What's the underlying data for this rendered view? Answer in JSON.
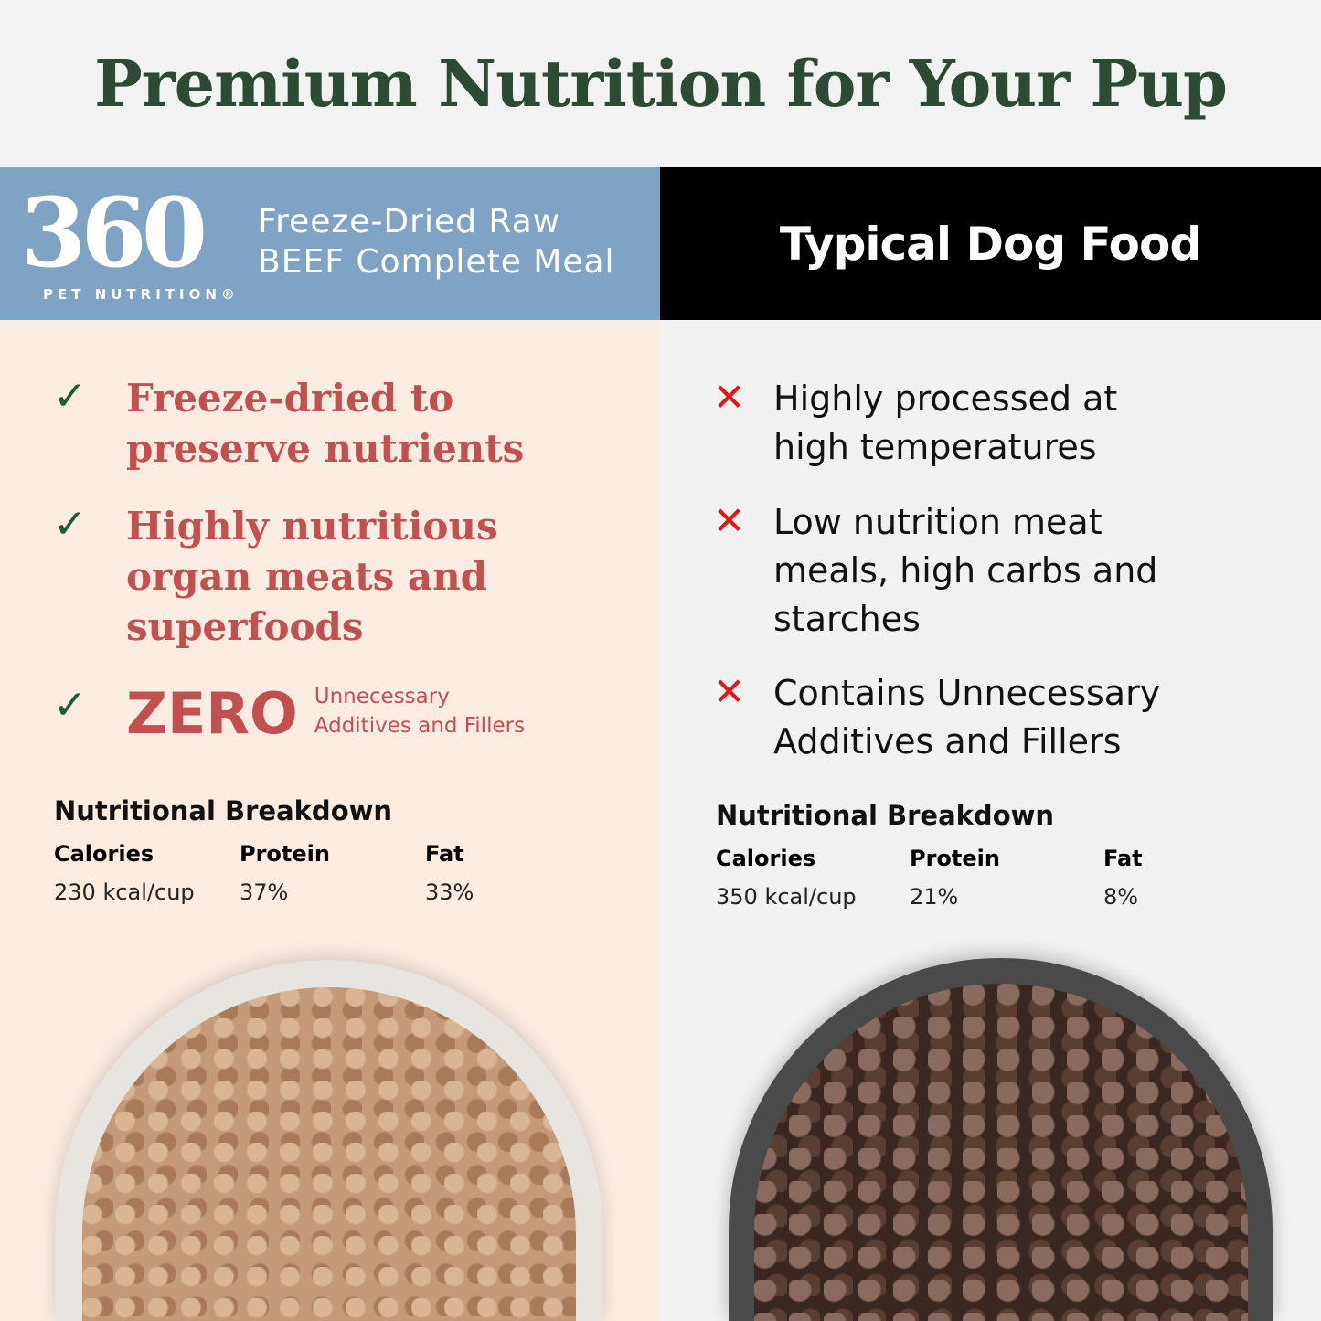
{
  "title": "Premium Nutrition for Your Pup",
  "left_header": {
    "logo": "360",
    "logo_sub": "PET NUTRITION®",
    "product_line1": "Freeze-Dried Raw",
    "product_line2": "BEEF Complete Meal",
    "color": "#7ea3c4"
  },
  "right_header": {
    "title": "Typical Dog Food"
  },
  "left_points": [
    {
      "icon": "check-icon",
      "lines": [
        "Freeze-dried to",
        "preserve nutrients"
      ]
    },
    {
      "icon": "check-icon",
      "lines": [
        "Highly nutritious",
        "organ meats and",
        "superfoods"
      ]
    },
    {
      "icon": "check-icon",
      "zero": "ZERO",
      "lines": [
        "Unnecessary",
        "Additives and Fillers"
      ]
    }
  ],
  "right_points": [
    {
      "icon": "x-icon",
      "lines": [
        "Highly processed at",
        "high temperatures"
      ]
    },
    {
      "icon": "x-icon",
      "lines": [
        "Low nutrition meat",
        "meals, high carbs and",
        "starches"
      ]
    },
    {
      "icon": "x-icon",
      "lines": [
        "Contains Unnecessary",
        "Additives and Fillers"
      ]
    }
  ],
  "left_nutrition": {
    "heading": "Nutritional Breakdown",
    "headers": [
      "Calories",
      "Protein",
      "Fat"
    ],
    "values": [
      "230 kcal/cup",
      "37%",
      "33%"
    ]
  },
  "right_nutrition": {
    "heading": "Nutritional Breakdown",
    "headers": [
      "Calories",
      "Protein",
      "Fat"
    ],
    "values": [
      "350 kcal/cup",
      "21%",
      "8%"
    ]
  }
}
